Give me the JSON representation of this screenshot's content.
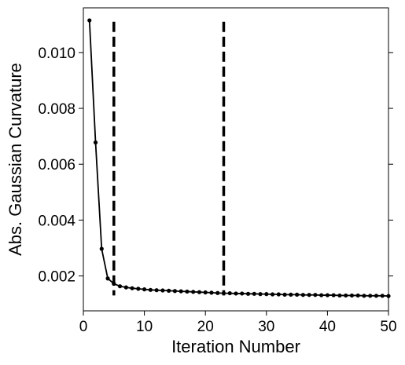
{
  "chart_data": {
    "type": "line",
    "xlabel": "Iteration Number",
    "ylabel": "Abs. Gaussian Curvature",
    "xlim": [
      0,
      50
    ],
    "ylim": [
      0.00075,
      0.0116
    ],
    "x_ticks": [
      0,
      10,
      20,
      30,
      40,
      50
    ],
    "x_tick_labels": [
      "0",
      "10",
      "20",
      "30",
      "40",
      "50"
    ],
    "y_ticks": [
      0.002,
      0.004,
      0.006,
      0.008,
      0.01
    ],
    "y_tick_labels": [
      "0.002",
      "0.004",
      "0.006",
      "0.008",
      "0.010"
    ],
    "grid": false,
    "line_color": "#000000",
    "series": [
      {
        "x": [
          1,
          2,
          3,
          4,
          5,
          6,
          7,
          8,
          9,
          10,
          11,
          12,
          13,
          14,
          15,
          16,
          17,
          18,
          19,
          20,
          21,
          22,
          23,
          24,
          25,
          26,
          27,
          28,
          29,
          30,
          31,
          32,
          33,
          34,
          35,
          36,
          37,
          38,
          39,
          40,
          41,
          42,
          43,
          44,
          45,
          46,
          47,
          48,
          49,
          50
        ],
        "values": [
          0.01115,
          0.00678,
          0.00297,
          0.00191,
          0.00172,
          0.00163,
          0.00159,
          0.00156,
          0.00154,
          0.00152,
          0.0015,
          0.00149,
          0.00148,
          0.00147,
          0.00146,
          0.00145,
          0.00144,
          0.00143,
          0.00142,
          0.00141,
          0.0014,
          0.00139,
          0.00138,
          0.00138,
          0.00137,
          0.00137,
          0.00136,
          0.00136,
          0.00135,
          0.00135,
          0.00134,
          0.00134,
          0.00133,
          0.00133,
          0.00133,
          0.00132,
          0.00132,
          0.00132,
          0.00131,
          0.00131,
          0.00131,
          0.0013,
          0.0013,
          0.0013,
          0.0013,
          0.00129,
          0.00129,
          0.00129,
          0.00129,
          0.00128
        ]
      }
    ],
    "vertical_lines": [
      {
        "x": 5,
        "y_from": 0.0013,
        "y_to": 0.0111,
        "style": "dashed"
      },
      {
        "x": 23,
        "y_from": 0.0013,
        "y_to": 0.0111,
        "style": "dashed"
      }
    ]
  }
}
